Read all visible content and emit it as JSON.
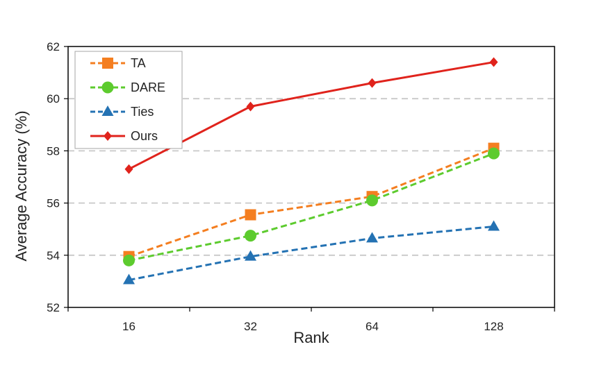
{
  "chart_data": {
    "type": "line",
    "title": "",
    "xlabel": "Rank",
    "ylabel": "Average Accuracy (%)",
    "categories": [
      "16",
      "32",
      "64",
      "128"
    ],
    "ylim": [
      52,
      62
    ],
    "yticks": [
      52,
      54,
      56,
      58,
      60,
      62
    ],
    "grid": "horizontal dashed",
    "legend_position": "top-left",
    "series": [
      {
        "name": "TA",
        "values": [
          53.95,
          55.55,
          56.25,
          58.1
        ],
        "color": "#F47E20",
        "marker": "square",
        "dash": true
      },
      {
        "name": "DARE",
        "values": [
          53.8,
          54.75,
          56.1,
          57.9
        ],
        "color": "#5DCB2E",
        "marker": "circle",
        "dash": true
      },
      {
        "name": "Ties",
        "values": [
          53.05,
          53.95,
          54.65,
          55.1
        ],
        "color": "#2472B3",
        "marker": "triangle",
        "dash": true
      },
      {
        "name": "Ours",
        "values": [
          57.3,
          59.7,
          60.6,
          61.4
        ],
        "color": "#E0231C",
        "marker": "diamond",
        "dash": false
      }
    ]
  }
}
